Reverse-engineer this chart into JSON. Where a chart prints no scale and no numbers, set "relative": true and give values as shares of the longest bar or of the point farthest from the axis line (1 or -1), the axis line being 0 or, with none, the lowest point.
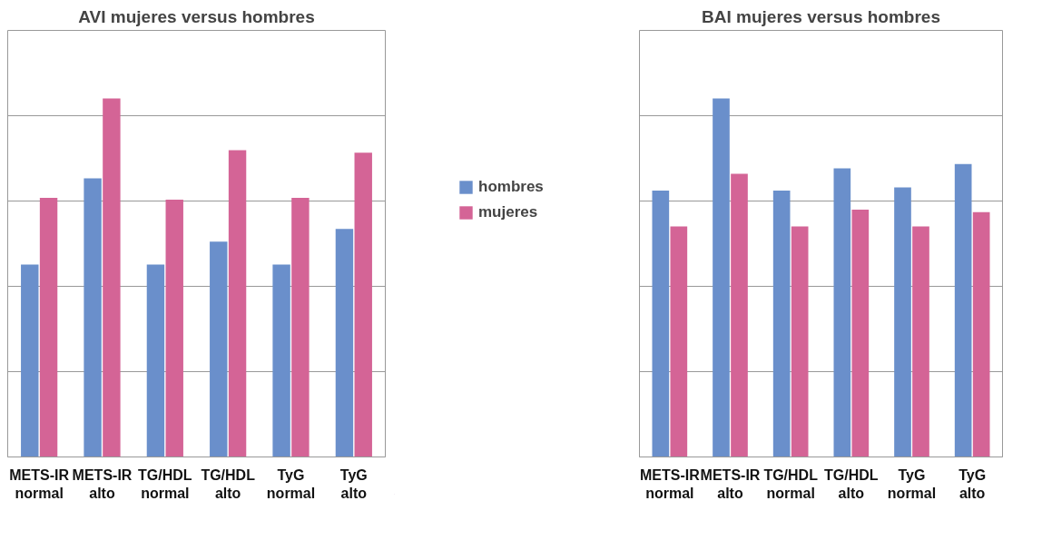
{
  "chart_data": [
    {
      "type": "bar",
      "title": "AVI mujeres versus hombres",
      "relative": true,
      "grid": "y",
      "legend": "right",
      "categories": [
        "METS-IR\nnormal",
        "METS-IR\nalto",
        "TG/HDL\nnormal",
        "TG/HDL\nalto",
        "TyG\nnormal",
        "TyG\nalto"
      ],
      "series": [
        {
          "name": "hombres",
          "color": "#6a8fcb",
          "values": [
            0.537,
            0.777,
            0.537,
            0.601,
            0.537,
            0.636
          ]
        },
        {
          "name": "mujeres",
          "color": "#d46496",
          "values": [
            0.723,
            1,
            0.718,
            0.856,
            0.723,
            0.849
          ]
        }
      ]
    },
    {
      "type": "bar",
      "title": "BAI mujeres versus hombres",
      "relative": true,
      "grid": "y",
      "categories": [
        "METS-IR\nnormal",
        "METS-IR\nalto",
        "TG/HDL\nnormal",
        "TG/HDL\nalto",
        "TyG\nnormal",
        "TyG\nalto"
      ],
      "series": [
        {
          "color": "#6a8fcb",
          "values": [
            0.743,
            1,
            0.743,
            0.805,
            0.752,
            0.817
          ]
        },
        {
          "color": "#d46496",
          "values": [
            0.643,
            0.79,
            0.643,
            0.69,
            0.643,
            0.683
          ]
        }
      ]
    }
  ]
}
